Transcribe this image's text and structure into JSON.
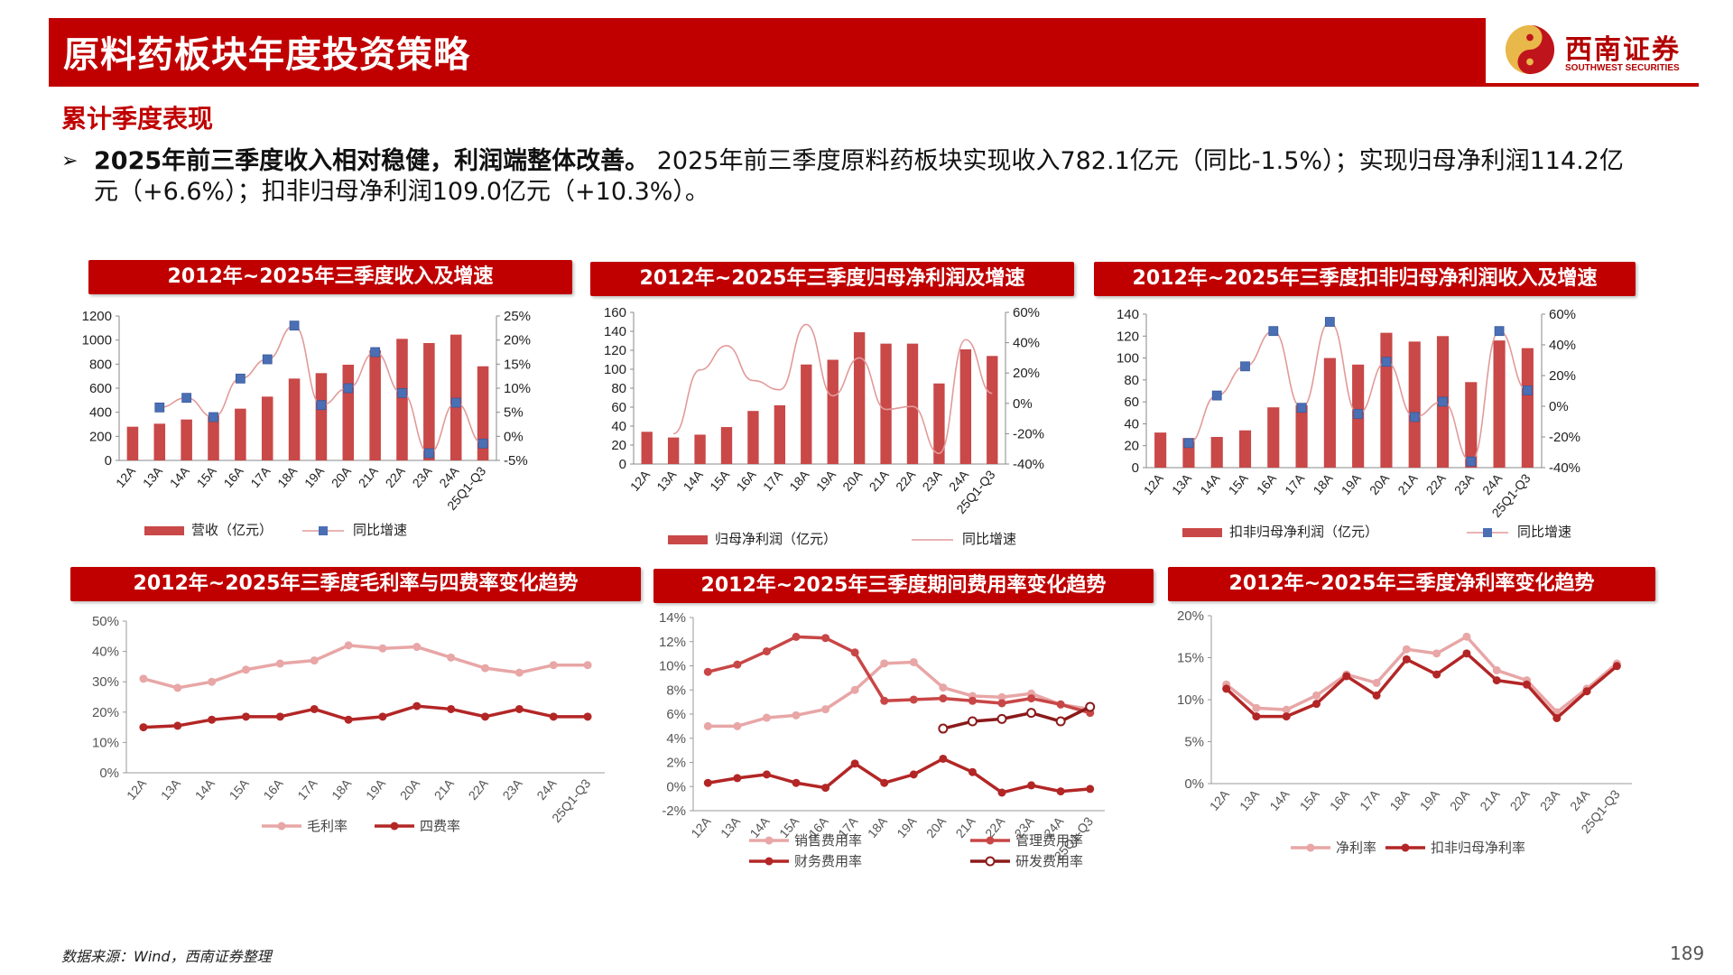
{
  "header": {
    "title": "原料药板块年度投资策略",
    "logo_cn": "西南证券",
    "logo_en": "SOUTHWEST SECURITIES"
  },
  "section_title": "累计季度表现",
  "summary": {
    "bold": "2025年前三季度收入相对稳健，利润端整体改善。",
    "line1": " 2025年前三季度原料药板块实现收入782.1亿元（同比-1.5%）；实现归母净利润114.2亿",
    "line2": "元（+6.6%）；扣非归母净利润109.0亿元（+10.3%）。"
  },
  "source": "数据来源：Wind，西南证券整理",
  "page_number": "189",
  "chart_data": [
    {
      "type": "bar",
      "title": "2012年~2025年三季度收入及增速",
      "categories": [
        "12A",
        "13A",
        "14A",
        "15A",
        "16A",
        "17A",
        "18A",
        "19A",
        "20A",
        "21A",
        "22A",
        "23A",
        "24A",
        "25Q1-Q3"
      ],
      "series": [
        {
          "name": "营收（亿元）",
          "type": "bar",
          "axis": "left",
          "values": [
            280,
            305,
            340,
            375,
            430,
            530,
            680,
            725,
            795,
            915,
            1010,
            975,
            1045,
            782
          ]
        },
        {
          "name": "同比增速",
          "type": "line",
          "axis": "right",
          "marker": "square",
          "values": [
            null,
            6.0,
            8.0,
            4.0,
            12.0,
            16.0,
            23.0,
            6.5,
            10.0,
            17.5,
            9.0,
            -3.5,
            7.0,
            -1.5
          ]
        }
      ],
      "ylim_left": [
        0,
        1200
      ],
      "yticks_left": [
        0,
        200,
        400,
        600,
        800,
        1000,
        1200
      ],
      "ylim_right": [
        -5,
        25
      ],
      "yticks_right": [
        "-5%",
        "0%",
        "5%",
        "10%",
        "15%",
        "20%",
        "25%"
      ],
      "legend": "bottom"
    },
    {
      "type": "bar",
      "title": "2012年~2025年三季度归母净利润及增速",
      "categories": [
        "12A",
        "13A",
        "14A",
        "15A",
        "16A",
        "17A",
        "18A",
        "19A",
        "20A",
        "21A",
        "22A",
        "23A",
        "24A",
        "25Q1-Q3"
      ],
      "series": [
        {
          "name": "归母净利润（亿元）",
          "type": "bar",
          "axis": "left",
          "values": [
            34,
            28,
            31,
            39,
            56,
            62,
            105,
            110,
            139,
            127,
            127,
            85,
            121,
            114
          ]
        },
        {
          "name": "同比增速",
          "type": "line",
          "axis": "right",
          "marker": "none",
          "values": [
            null,
            -20,
            22,
            38,
            15,
            9,
            52,
            5,
            30,
            -4,
            -2,
            -33,
            42,
            6.6
          ]
        }
      ],
      "ylim_left": [
        0,
        160
      ],
      "yticks_left": [
        0,
        20,
        40,
        60,
        80,
        100,
        120,
        140,
        160
      ],
      "ylim_right": [
        -40,
        60
      ],
      "yticks_right": [
        "-40%",
        "-20%",
        "0%",
        "20%",
        "40%",
        "60%"
      ],
      "legend": "bottom"
    },
    {
      "type": "bar",
      "title": "2012年~2025年三季度扣非归母净利润收入及增速",
      "categories": [
        "12A",
        "13A",
        "14A",
        "15A",
        "16A",
        "17A",
        "18A",
        "19A",
        "20A",
        "21A",
        "22A",
        "23A",
        "24A",
        "25Q1-Q3"
      ],
      "series": [
        {
          "name": "扣非归母净利润（亿元）",
          "type": "bar",
          "axis": "left",
          "values": [
            32,
            27,
            28,
            34,
            55,
            57,
            100,
            94,
            123,
            115,
            120,
            78,
            116,
            109
          ]
        },
        {
          "name": "同比增速",
          "type": "line",
          "axis": "right",
          "marker": "square",
          "values": [
            null,
            -24,
            7,
            26,
            49,
            -1,
            55,
            -5,
            29,
            -7,
            3,
            -36,
            49,
            10.3
          ]
        }
      ],
      "ylim_left": [
        0,
        140
      ],
      "yticks_left": [
        0,
        20,
        40,
        60,
        80,
        100,
        120,
        140
      ],
      "ylim_right": [
        -40,
        60
      ],
      "yticks_right": [
        "-40%",
        "-20%",
        "0%",
        "20%",
        "40%",
        "60%"
      ],
      "legend": "bottom"
    },
    {
      "type": "line",
      "title": "2012年~2025年三季度毛利率与四费率变化趋势",
      "categories": [
        "12A",
        "13A",
        "14A",
        "15A",
        "16A",
        "17A",
        "18A",
        "19A",
        "20A",
        "21A",
        "22A",
        "23A",
        "24A",
        "25Q1-Q3"
      ],
      "series": [
        {
          "name": "毛利率",
          "color": "#e8a6a6",
          "values": [
            31,
            28,
            30,
            34,
            36,
            37,
            42,
            41,
            41.5,
            38,
            34.5,
            33,
            35.5,
            35.5
          ]
        },
        {
          "name": "四费率",
          "color": "#b32626",
          "values": [
            15,
            15.5,
            17.5,
            18.5,
            18.5,
            21,
            17.5,
            18.5,
            22,
            21,
            18.5,
            21,
            18.5,
            18.5
          ]
        }
      ],
      "ylim": [
        0,
        50
      ],
      "yticks": [
        "0%",
        "10%",
        "20%",
        "30%",
        "40%",
        "50%"
      ],
      "legend": "bottom"
    },
    {
      "type": "line",
      "title": "2012年~2025年三季度期间费用率变化趋势",
      "categories": [
        "12A",
        "13A",
        "14A",
        "15A",
        "16A",
        "17A",
        "18A",
        "19A",
        "20A",
        "21A",
        "22A",
        "23A",
        "24A",
        "25Q1-Q3"
      ],
      "series": [
        {
          "name": "销售费用率",
          "color": "#e8a6a6",
          "values": [
            5.0,
            5.0,
            5.7,
            5.9,
            6.4,
            8.0,
            10.2,
            10.3,
            8.2,
            7.5,
            7.4,
            7.7,
            6.8,
            6.4
          ]
        },
        {
          "name": "管理费用率",
          "color": "#c84646",
          "values": [
            9.5,
            10.1,
            11.2,
            12.4,
            12.3,
            11.1,
            7.1,
            7.2,
            7.3,
            7.1,
            6.9,
            7.3,
            6.8,
            6.1
          ]
        },
        {
          "name": "财务费用率",
          "color": "#b32626",
          "values": [
            0.3,
            0.7,
            1.0,
            0.3,
            -0.1,
            1.9,
            0.3,
            1.0,
            2.3,
            1.2,
            -0.5,
            0.1,
            -0.4,
            -0.2
          ]
        },
        {
          "name": "研发费用率",
          "color": "#8b1a1a",
          "hollow": true,
          "values": [
            null,
            null,
            null,
            null,
            null,
            null,
            null,
            null,
            4.8,
            5.4,
            5.6,
            6.1,
            5.4,
            6.6
          ]
        }
      ],
      "ylim": [
        -2,
        14
      ],
      "yticks": [
        "-2%",
        "0%",
        "2%",
        "4%",
        "6%",
        "8%",
        "10%",
        "12%",
        "14%"
      ],
      "legend": "bottom"
    },
    {
      "type": "line",
      "title": "2012年~2025年三季度净利率变化趋势",
      "categories": [
        "12A",
        "13A",
        "14A",
        "15A",
        "16A",
        "17A",
        "18A",
        "19A",
        "20A",
        "21A",
        "22A",
        "23A",
        "24A",
        "25Q1-Q3"
      ],
      "series": [
        {
          "name": "净利率",
          "color": "#e8a6a6",
          "values": [
            11.8,
            9.0,
            8.8,
            10.5,
            13.0,
            12.0,
            16.0,
            15.5,
            17.5,
            13.5,
            12.3,
            8.5,
            11.3,
            14.3
          ]
        },
        {
          "name": "扣非归母净利率",
          "color": "#b32626",
          "values": [
            11.3,
            8.0,
            8.0,
            9.5,
            12.8,
            10.5,
            14.8,
            13.0,
            15.5,
            12.3,
            11.8,
            7.8,
            11.0,
            14.0
          ]
        }
      ],
      "ylim": [
        0,
        20
      ],
      "yticks": [
        "0%",
        "5%",
        "10%",
        "15%",
        "20%"
      ],
      "legend": "bottom"
    }
  ]
}
